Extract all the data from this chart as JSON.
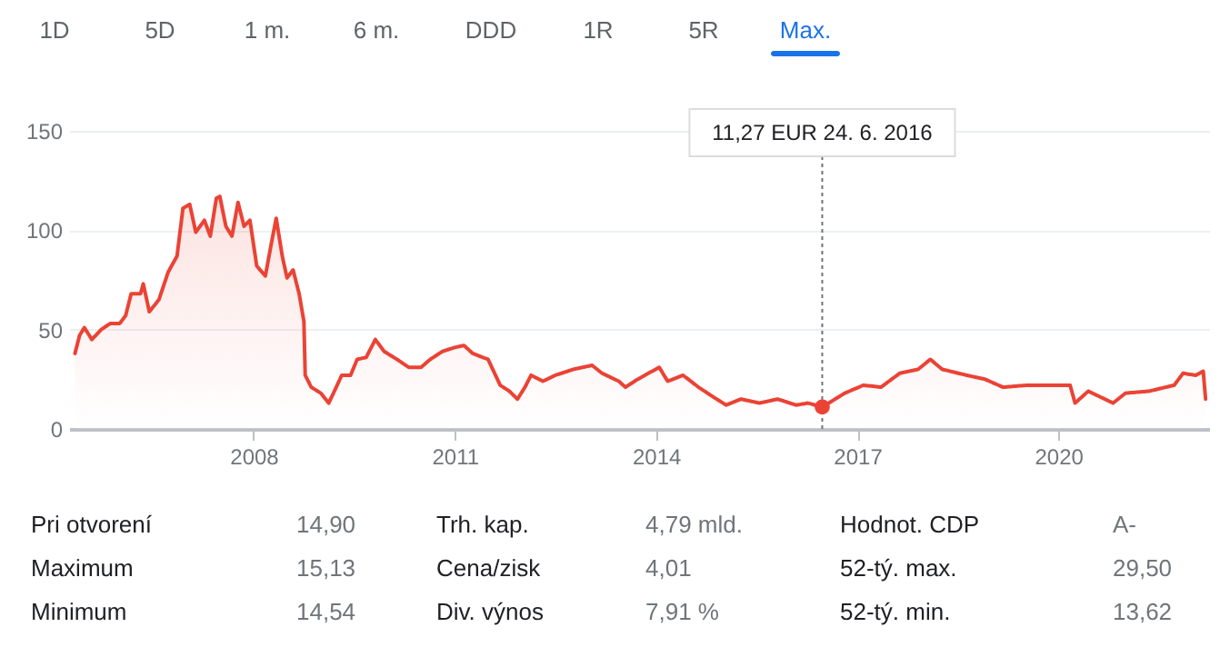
{
  "chart_data": {
    "type": "area",
    "x": [
      "2005-05-03",
      "2005-05-28",
      "2005-06-23",
      "2005-08-03",
      "2005-09-23",
      "2005-11-10",
      "2006-01-01",
      "2006-02-03",
      "2006-03-05",
      "2006-04-25",
      "2006-05-10",
      "2006-06-12",
      "2006-08-03",
      "2006-09-23",
      "2006-11-10",
      "2006-12-12",
      "2007-01-18",
      "2007-02-20",
      "2007-04-08",
      "2007-05-10",
      "2007-06-12",
      "2007-07-01",
      "2007-08-03",
      "2007-09-05",
      "2007-10-08",
      "2007-11-10",
      "2007-12-12",
      "2008-01-18",
      "2008-03-05",
      "2008-04-08",
      "2008-05-03",
      "2008-06-05",
      "2008-07-01",
      "2008-08-03",
      "2008-09-05",
      "2008-10-01",
      "2008-10-08",
      "2008-11-10",
      "2009-01-01",
      "2009-02-13",
      "2009-03-16",
      "2009-04-25",
      "2009-06-12",
      "2009-07-18",
      "2009-09-05",
      "2009-10-25",
      "2009-12-12",
      "2010-02-20",
      "2010-04-25",
      "2010-07-01",
      "2010-08-20",
      "2010-10-25",
      "2011-01-01",
      "2011-02-20",
      "2011-04-08",
      "2011-07-01",
      "2011-09-05",
      "2011-10-25",
      "2011-12-08",
      "2012-01-18",
      "2012-02-20",
      "2012-04-25",
      "2012-07-01",
      "2012-10-08",
      "2013-01-18",
      "2013-03-13",
      "2013-06-12",
      "2013-07-18",
      "2013-09-23",
      "2014-01-18",
      "2014-03-05",
      "2014-05-28",
      "2014-08-20",
      "2014-11-10",
      "2015-01-18",
      "2015-04-08",
      "2015-07-18",
      "2015-10-25",
      "2016-02-03",
      "2016-04-08",
      "2016-06-24",
      "2016-10-25",
      "2017-02-03",
      "2017-05-10",
      "2017-08-20",
      "2017-11-28",
      "2018-02-03",
      "2018-04-08",
      "2018-08-20",
      "2018-11-28",
      "2019-03-05",
      "2019-07-18",
      "2019-11-28",
      "2020-03-05",
      "2020-04-01",
      "2020-06-12",
      "2020-10-25",
      "2021-01-01",
      "2021-05-10",
      "2021-09-23",
      "2021-11-10",
      "2022-01-18",
      "2022-02-28",
      "2022-03-13"
    ],
    "series": [
      {
        "color": "#ea4335",
        "values": [
          38,
          47,
          51,
          45,
          50,
          53,
          53,
          57,
          68,
          68,
          73,
          59,
          65,
          79,
          87,
          111,
          113,
          99,
          105,
          97,
          116,
          117,
          102,
          97,
          114,
          102,
          105,
          82,
          77,
          94,
          106,
          87,
          76,
          80,
          68,
          54,
          27,
          21,
          18,
          13,
          19,
          27,
          27,
          35,
          36,
          45,
          39,
          35,
          31,
          31,
          35,
          39,
          41,
          42,
          38,
          35,
          22,
          19,
          15,
          21,
          27,
          24,
          27,
          30,
          32,
          28,
          24,
          21,
          25,
          31,
          24,
          27,
          21,
          16,
          12,
          15,
          13,
          15,
          12,
          13,
          11,
          18,
          22,
          21,
          28,
          30,
          35,
          30,
          27,
          25,
          21,
          22,
          22,
          22,
          13,
          19,
          13,
          18,
          19,
          22,
          28,
          27,
          29,
          15
        ]
      }
    ],
    "xlim": [
      "2005-04",
      "2022-04"
    ],
    "xticks": [
      "2008",
      "2011",
      "2014",
      "2017",
      "2020"
    ],
    "ylim": [
      0,
      150
    ],
    "yticks": [
      0,
      50,
      100,
      150
    ],
    "grid": "y",
    "marker": "none",
    "ref_lines": [
      {
        "axis": "x",
        "value": "2016-06-24",
        "label": "11,27 EUR  24. 6. 2016",
        "color": "#70757a",
        "line_style": "dotted"
      }
    ],
    "annotations": [
      "1D",
      "5D",
      "1 m.",
      "6 m.",
      "DDD",
      "1R",
      "5R",
      "Max.",
      "Pri otvorení",
      "14,90",
      "Trh. kap.",
      "4,79 mld.",
      "Hodnot. CDP",
      "A-",
      "Maximum",
      "15,13",
      "Cena/zisk",
      "4,01",
      "52-tý. max.",
      "29,50",
      "Minimum",
      "14,54",
      "Div. výnos",
      "7,91 %",
      "52-tý. min.",
      "13,62"
    ]
  }
}
